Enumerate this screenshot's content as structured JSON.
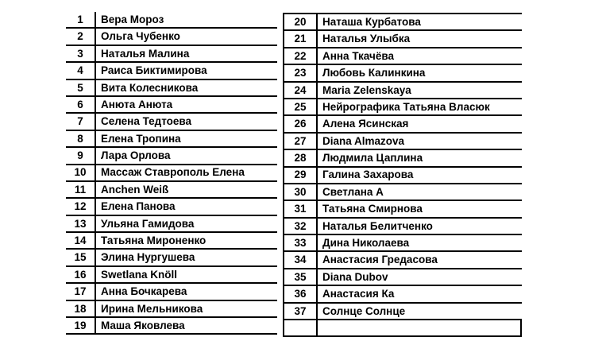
{
  "page": {
    "background_color": "#ffffff",
    "border_color": "#000000",
    "text_color": "#000000"
  },
  "left_table": {
    "rows": [
      {
        "num": "1",
        "name": "Вера Мороз"
      },
      {
        "num": "2",
        "name": "Ольга Чубенко"
      },
      {
        "num": "3",
        "name": "Наталья Малина"
      },
      {
        "num": "4",
        "name": "Раиса Биктимирова"
      },
      {
        "num": "5",
        "name": "Вита Колесникова"
      },
      {
        "num": "6",
        "name": "Анюта Анюта"
      },
      {
        "num": "7",
        "name": "Селена Тедтоева"
      },
      {
        "num": "8",
        "name": "Елена Тропина"
      },
      {
        "num": "9",
        "name": "Лара Орлова"
      },
      {
        "num": "10",
        "name": "Массаж Ставрополь Елена"
      },
      {
        "num": "11",
        "name": "Anchen Weiß"
      },
      {
        "num": "12",
        "name": "Елена Панова"
      },
      {
        "num": "13",
        "name": "Ульяна Гамидова"
      },
      {
        "num": "14",
        "name": "Татьяна Мироненко"
      },
      {
        "num": "15",
        "name": "Элина Нургушева"
      },
      {
        "num": "16",
        "name": "Swetlana Knöll"
      },
      {
        "num": "17",
        "name": "Анна Бочкарева"
      },
      {
        "num": "18",
        "name": "Ирина Мельникова"
      },
      {
        "num": "19",
        "name": "Маша Яковлева"
      }
    ]
  },
  "right_table": {
    "rows": [
      {
        "num": "20",
        "name": "Наташа Курбатова"
      },
      {
        "num": "21",
        "name": "Наталья Улыбка"
      },
      {
        "num": "22",
        "name": "Анна Ткачёва"
      },
      {
        "num": "23",
        "name": "Любовь Калинкина"
      },
      {
        "num": "24",
        "name": "Maria Zelenskaya"
      },
      {
        "num": "25",
        "name": "Нейрографика Татьяна Власюк"
      },
      {
        "num": "26",
        "name": "Алена Ясинская"
      },
      {
        "num": "27",
        "name": "Diana Almazova"
      },
      {
        "num": "28",
        "name": "Людмила Цаплина"
      },
      {
        "num": "29",
        "name": "Галина Захарова"
      },
      {
        "num": "30",
        "name": "Светлана А"
      },
      {
        "num": "31",
        "name": "Татьяна Смирнова"
      },
      {
        "num": "32",
        "name": "Наталья Белитченко"
      },
      {
        "num": "33",
        "name": "Дина Николаева"
      },
      {
        "num": "34",
        "name": "Анастасия Гредасова"
      },
      {
        "num": "35",
        "name": "Diana Dubov"
      },
      {
        "num": "36",
        "name": "Анастасия Ка"
      },
      {
        "num": "37",
        "name": "Солнце Солнце"
      },
      {
        "num": "",
        "name": ""
      }
    ]
  }
}
